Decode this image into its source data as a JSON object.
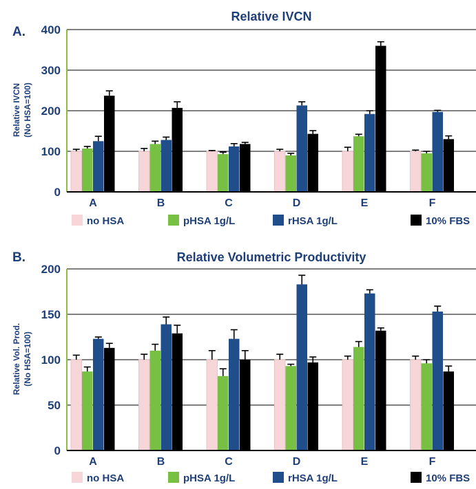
{
  "colors": {
    "text": "#1f3f78",
    "axis": "#8cbf3f",
    "grid": "#000000",
    "series": [
      "#f7d6d9",
      "#78c043",
      "#1f4e8a",
      "#000000"
    ]
  },
  "chart_data": [
    {
      "type": "bar",
      "panel": "A.",
      "title": "Relative IVCN",
      "ylabel_lines": [
        "Relative IVCN",
        "(No HSA=100)"
      ],
      "xlabel": "",
      "ylim": [
        0,
        400
      ],
      "yticks": [
        0,
        100,
        200,
        300,
        400
      ],
      "grid": true,
      "legend_position": "bottom",
      "categories": [
        "A",
        "B",
        "C",
        "D",
        "E",
        "F"
      ],
      "series": [
        {
          "name": "no HSA",
          "values": [
            100,
            100,
            100,
            100,
            100,
            100
          ],
          "errors": [
            5,
            7,
            2,
            5,
            10,
            3
          ]
        },
        {
          "name": "pHSA 1g/L",
          "values": [
            107,
            118,
            93,
            90,
            137,
            95
          ],
          "errors": [
            5,
            7,
            5,
            5,
            5,
            5
          ]
        },
        {
          "name": "rHSA 1g/L",
          "values": [
            125,
            128,
            112,
            213,
            192,
            197
          ],
          "errors": [
            12,
            7,
            7,
            9,
            8,
            4
          ]
        },
        {
          "name": "10% FBS",
          "values": [
            237,
            207,
            118,
            143,
            360,
            130
          ],
          "errors": [
            12,
            15,
            4,
            8,
            10,
            8
          ]
        }
      ]
    },
    {
      "type": "bar",
      "panel": "B.",
      "title": "Relative Volumetric Productivity",
      "ylabel_lines": [
        "Relative Vol. Prod.",
        "(No HSA=100)"
      ],
      "xlabel": "",
      "ylim": [
        0,
        200
      ],
      "yticks": [
        0,
        50,
        100,
        150,
        200
      ],
      "grid": true,
      "legend_position": "bottom",
      "categories": [
        "A",
        "B",
        "C",
        "D",
        "E",
        "F"
      ],
      "series": [
        {
          "name": "no HSA",
          "values": [
            100,
            100,
            100,
            100,
            100,
            100
          ],
          "errors": [
            5,
            6,
            10,
            6,
            4,
            4
          ]
        },
        {
          "name": "pHSA 1g/L",
          "values": [
            87,
            110,
            82,
            93,
            114,
            96
          ],
          "errors": [
            5,
            7,
            8,
            2,
            6,
            4
          ]
        },
        {
          "name": "rHSA 1g/L",
          "values": [
            123,
            139,
            123,
            183,
            173,
            153
          ],
          "errors": [
            2,
            8,
            10,
            10,
            4,
            6
          ]
        },
        {
          "name": "10% FBS",
          "values": [
            113,
            129,
            100,
            97,
            132,
            87
          ],
          "errors": [
            5,
            9,
            10,
            6,
            3,
            6
          ]
        }
      ]
    }
  ]
}
